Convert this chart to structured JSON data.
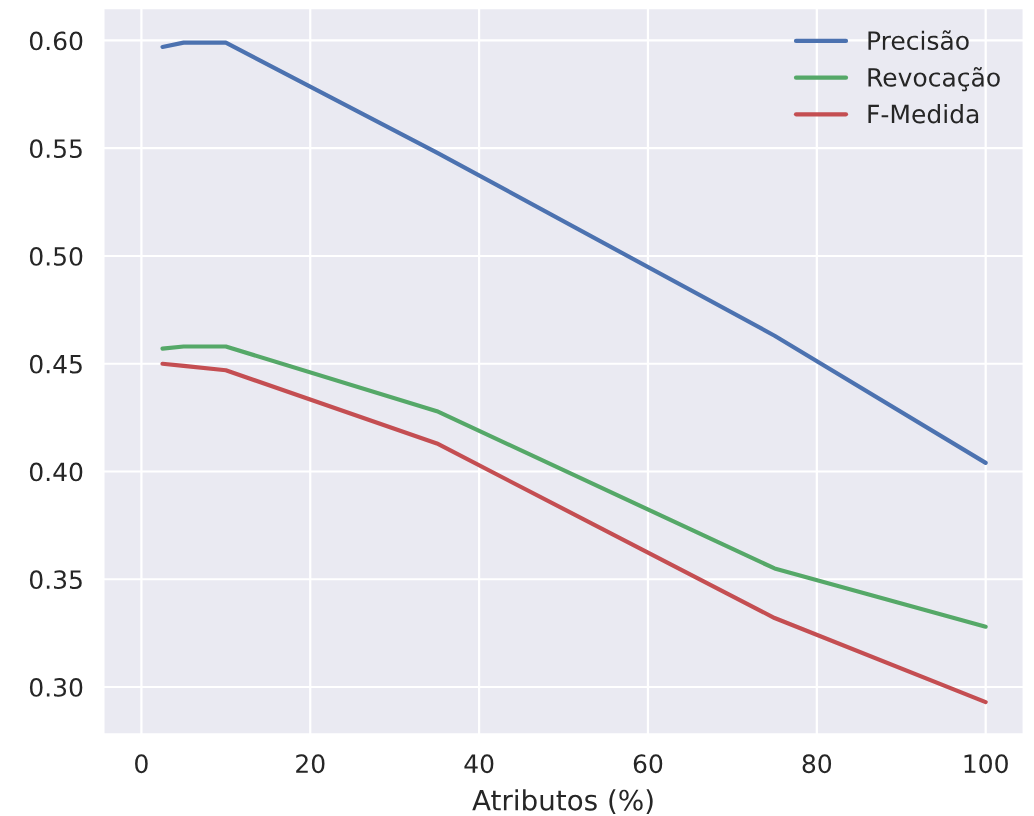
{
  "chart_data": {
    "type": "line",
    "xlabel": "Atributos (%)",
    "x": [
      2.5,
      5,
      10,
      35,
      75,
      100
    ],
    "series": [
      {
        "name": "Precisão",
        "color": "#4c72b0",
        "values": [
          0.597,
          0.599,
          0.599,
          0.548,
          0.463,
          0.404
        ]
      },
      {
        "name": "Revocação",
        "color": "#55a868",
        "values": [
          0.457,
          0.458,
          0.458,
          0.428,
          0.355,
          0.328
        ]
      },
      {
        "name": "F-Medida",
        "color": "#c44e52",
        "values": [
          0.45,
          0.449,
          0.447,
          0.413,
          0.332,
          0.293
        ]
      }
    ],
    "xlim": [
      -4.5,
      104.5
    ],
    "xticks": [
      0,
      20,
      40,
      60,
      80,
      100
    ],
    "ylim": [
      0.278,
      0.615
    ],
    "yticks": [
      {
        "value": 0.3,
        "label": "0.30"
      },
      {
        "value": 0.35,
        "label": "0.35"
      },
      {
        "value": 0.4,
        "label": "0.40"
      },
      {
        "value": 0.45,
        "label": "0.45"
      },
      {
        "value": 0.5,
        "label": "0.50"
      },
      {
        "value": 0.55,
        "label": "0.55"
      },
      {
        "value": 0.6,
        "label": "0.60"
      }
    ],
    "grid": true,
    "legend": "top right"
  }
}
